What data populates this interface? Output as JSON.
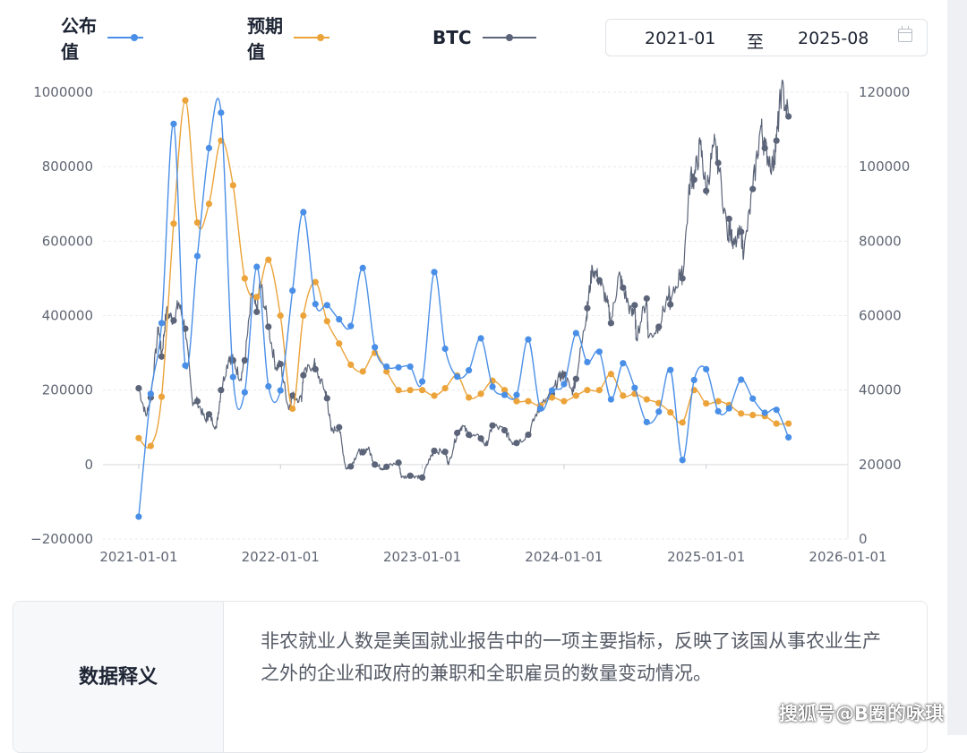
{
  "legend": {
    "items": [
      {
        "label": "公布值",
        "color": "#4a8fe7"
      },
      {
        "label": "预期值",
        "color": "#eba33a"
      },
      {
        "label": "BTC",
        "color": "#5b6478"
      }
    ]
  },
  "date_range": {
    "start": "2021-01",
    "separator": "至",
    "end": "2025-08"
  },
  "chart_data": {
    "type": "line",
    "x_axis": {
      "type": "date",
      "ticks": [
        "2021-01-01",
        "2022-01-01",
        "2023-01-01",
        "2024-01-01",
        "2025-01-01",
        "2026-01-01"
      ],
      "range": [
        "2020-10-01",
        "2026-01-01"
      ]
    },
    "y_axis_left": {
      "ticks": [
        "1000000",
        "800000",
        "600000",
        "400000",
        "200000",
        "0",
        "−200000"
      ],
      "range": [
        -200000,
        1000000
      ]
    },
    "y_axis_right": {
      "ticks": [
        "120000",
        "100000",
        "80000",
        "60000",
        "40000",
        "20000",
        "0"
      ],
      "range": [
        0,
        120000
      ]
    },
    "grid": "horizontal dashed",
    "legend_position": "top-left",
    "series": [
      {
        "name": "公布值",
        "axis": "left",
        "color": "#4a8fe7",
        "points": [
          [
            "2021-01-01",
            -140000
          ],
          [
            "2021-02-01",
            190000
          ],
          [
            "2021-03-01",
            380000
          ],
          [
            "2021-04-01",
            915000
          ],
          [
            "2021-05-01",
            266000
          ],
          [
            "2021-06-01",
            560000
          ],
          [
            "2021-07-01",
            850000
          ],
          [
            "2021-08-01",
            945000
          ],
          [
            "2021-09-01",
            235000
          ],
          [
            "2021-10-01",
            194000
          ],
          [
            "2021-11-01",
            531000
          ],
          [
            "2021-12-01",
            210000
          ],
          [
            "2022-01-01",
            199000
          ],
          [
            "2022-02-01",
            467000
          ],
          [
            "2022-03-01",
            678000
          ],
          [
            "2022-04-01",
            431000
          ],
          [
            "2022-05-01",
            428000
          ],
          [
            "2022-06-01",
            390000
          ],
          [
            "2022-07-01",
            372000
          ],
          [
            "2022-08-01",
            528000
          ],
          [
            "2022-09-01",
            315000
          ],
          [
            "2022-10-01",
            263000
          ],
          [
            "2022-11-01",
            261000
          ],
          [
            "2022-12-01",
            263000
          ],
          [
            "2023-01-01",
            223000
          ],
          [
            "2023-02-01",
            517000
          ],
          [
            "2023-03-01",
            311000
          ],
          [
            "2023-04-01",
            236000
          ],
          [
            "2023-05-01",
            253000
          ],
          [
            "2023-06-01",
            339000
          ],
          [
            "2023-07-01",
            209000
          ],
          [
            "2023-08-01",
            187000
          ],
          [
            "2023-09-01",
            187000
          ],
          [
            "2023-10-01",
            336000
          ],
          [
            "2023-11-01",
            150000
          ],
          [
            "2023-12-01",
            199000
          ],
          [
            "2024-01-01",
            216000
          ],
          [
            "2024-02-01",
            353000
          ],
          [
            "2024-03-01",
            275000
          ],
          [
            "2024-04-01",
            303000
          ],
          [
            "2024-05-01",
            175000
          ],
          [
            "2024-06-01",
            272000
          ],
          [
            "2024-07-01",
            206000
          ],
          [
            "2024-08-01",
            114000
          ],
          [
            "2024-09-01",
            142000
          ],
          [
            "2024-10-01",
            254000
          ],
          [
            "2024-11-01",
            12000
          ],
          [
            "2024-12-01",
            227000
          ],
          [
            "2025-01-01",
            256000
          ],
          [
            "2025-02-01",
            143000
          ],
          [
            "2025-03-01",
            151000
          ],
          [
            "2025-04-01",
            228000
          ],
          [
            "2025-05-01",
            177000
          ],
          [
            "2025-06-01",
            139000
          ],
          [
            "2025-07-01",
            147000
          ],
          [
            "2025-08-01",
            73000
          ]
        ]
      },
      {
        "name": "预期值",
        "axis": "left",
        "color": "#eba33a",
        "points": [
          [
            "2021-01-01",
            71000
          ],
          [
            "2021-02-01",
            50000
          ],
          [
            "2021-03-01",
            182000
          ],
          [
            "2021-04-01",
            647000
          ],
          [
            "2021-05-01",
            978000
          ],
          [
            "2021-06-01",
            650000
          ],
          [
            "2021-07-01",
            700000
          ],
          [
            "2021-08-01",
            870000
          ],
          [
            "2021-09-01",
            750000
          ],
          [
            "2021-10-01",
            500000
          ],
          [
            "2021-11-01",
            450000
          ],
          [
            "2021-12-01",
            550000
          ],
          [
            "2022-01-01",
            400000
          ],
          [
            "2022-02-01",
            150000
          ],
          [
            "2022-03-01",
            400000
          ],
          [
            "2022-04-01",
            490000
          ],
          [
            "2022-05-01",
            385000
          ],
          [
            "2022-06-01",
            325000
          ],
          [
            "2022-07-01",
            268000
          ],
          [
            "2022-08-01",
            250000
          ],
          [
            "2022-09-01",
            300000
          ],
          [
            "2022-10-01",
            250000
          ],
          [
            "2022-11-01",
            200000
          ],
          [
            "2022-12-01",
            200000
          ],
          [
            "2023-01-01",
            200000
          ],
          [
            "2023-02-01",
            185000
          ],
          [
            "2023-03-01",
            205000
          ],
          [
            "2023-04-01",
            239000
          ],
          [
            "2023-05-01",
            180000
          ],
          [
            "2023-06-01",
            190000
          ],
          [
            "2023-07-01",
            225000
          ],
          [
            "2023-08-01",
            200000
          ],
          [
            "2023-09-01",
            170000
          ],
          [
            "2023-10-01",
            170000
          ],
          [
            "2023-11-01",
            158000
          ],
          [
            "2023-12-01",
            180000
          ],
          [
            "2024-01-01",
            170000
          ],
          [
            "2024-02-01",
            185000
          ],
          [
            "2024-03-01",
            200000
          ],
          [
            "2024-04-01",
            200000
          ],
          [
            "2024-05-01",
            243000
          ],
          [
            "2024-06-01",
            185000
          ],
          [
            "2024-07-01",
            190000
          ],
          [
            "2024-08-01",
            175000
          ],
          [
            "2024-09-01",
            165000
          ],
          [
            "2024-10-01",
            140000
          ],
          [
            "2024-11-01",
            113000
          ],
          [
            "2024-12-01",
            200000
          ],
          [
            "2025-01-01",
            164000
          ],
          [
            "2025-02-01",
            170000
          ],
          [
            "2025-03-01",
            160000
          ],
          [
            "2025-04-01",
            137000
          ],
          [
            "2025-05-01",
            133000
          ],
          [
            "2025-06-01",
            130000
          ],
          [
            "2025-07-01",
            110000
          ],
          [
            "2025-08-01",
            110000
          ]
        ]
      },
      {
        "name": "BTC",
        "axis": "right",
        "color": "#5b6478",
        "points": [
          [
            "2021-01-01",
            40500
          ],
          [
            "2021-01-20",
            33000
          ],
          [
            "2021-02-01",
            38000
          ],
          [
            "2021-02-21",
            57000
          ],
          [
            "2021-03-01",
            49000
          ],
          [
            "2021-03-13",
            61000
          ],
          [
            "2021-04-01",
            58700
          ],
          [
            "2021-04-14",
            63500
          ],
          [
            "2021-05-01",
            56500
          ],
          [
            "2021-05-19",
            37000
          ],
          [
            "2021-06-01",
            37000
          ],
          [
            "2021-06-22",
            31800
          ],
          [
            "2021-07-01",
            33500
          ],
          [
            "2021-07-20",
            29800
          ],
          [
            "2021-08-01",
            40000
          ],
          [
            "2021-08-22",
            49000
          ],
          [
            "2021-09-01",
            48000
          ],
          [
            "2021-09-20",
            43000
          ],
          [
            "2021-10-01",
            48000
          ],
          [
            "2021-10-20",
            66000
          ],
          [
            "2021-11-01",
            61000
          ],
          [
            "2021-11-10",
            69000
          ],
          [
            "2021-12-01",
            57000
          ],
          [
            "2021-12-20",
            46000
          ],
          [
            "2022-01-01",
            47000
          ],
          [
            "2022-01-22",
            35000
          ],
          [
            "2022-02-01",
            38500
          ],
          [
            "2022-02-24",
            37500
          ],
          [
            "2022-03-01",
            44000
          ],
          [
            "2022-03-29",
            47500
          ],
          [
            "2022-04-01",
            45600
          ],
          [
            "2022-04-25",
            40000
          ],
          [
            "2022-05-01",
            37800
          ],
          [
            "2022-05-12",
            29000
          ],
          [
            "2022-06-01",
            30000
          ],
          [
            "2022-06-18",
            19000
          ],
          [
            "2022-07-01",
            19500
          ],
          [
            "2022-07-20",
            23500
          ],
          [
            "2022-08-01",
            23300
          ],
          [
            "2022-08-15",
            24400
          ],
          [
            "2022-09-01",
            20000
          ],
          [
            "2022-09-20",
            19000
          ],
          [
            "2022-10-01",
            19400
          ],
          [
            "2022-11-01",
            20500
          ],
          [
            "2022-11-09",
            16500
          ],
          [
            "2022-12-01",
            17000
          ],
          [
            "2022-12-20",
            16800
          ],
          [
            "2023-01-01",
            16500
          ],
          [
            "2023-01-20",
            21500
          ],
          [
            "2023-02-01",
            23700
          ],
          [
            "2023-03-01",
            23400
          ],
          [
            "2023-03-10",
            20000
          ],
          [
            "2023-04-01",
            28500
          ],
          [
            "2023-04-14",
            30500
          ],
          [
            "2023-05-01",
            28000
          ],
          [
            "2023-06-01",
            27000
          ],
          [
            "2023-06-15",
            25000
          ],
          [
            "2023-07-01",
            30500
          ],
          [
            "2023-08-01",
            29200
          ],
          [
            "2023-08-20",
            26000
          ],
          [
            "2023-09-01",
            25800
          ],
          [
            "2023-10-01",
            28000
          ],
          [
            "2023-10-25",
            34500
          ],
          [
            "2023-11-01",
            35500
          ],
          [
            "2023-12-01",
            39000
          ],
          [
            "2023-12-20",
            43500
          ],
          [
            "2024-01-01",
            44200
          ],
          [
            "2024-01-22",
            39500
          ],
          [
            "2024-02-01",
            43000
          ],
          [
            "2024-02-28",
            60000
          ],
          [
            "2024-03-01",
            62000
          ],
          [
            "2024-03-14",
            73000
          ],
          [
            "2024-04-01",
            69500
          ],
          [
            "2024-04-20",
            64000
          ],
          [
            "2024-05-01",
            58000
          ],
          [
            "2024-05-21",
            71000
          ],
          [
            "2024-06-01",
            67500
          ],
          [
            "2024-06-24",
            60000
          ],
          [
            "2024-07-01",
            62800
          ],
          [
            "2024-07-05",
            54000
          ],
          [
            "2024-08-01",
            64600
          ],
          [
            "2024-08-05",
            54000
          ],
          [
            "2024-09-01",
            57000
          ],
          [
            "2024-09-27",
            66000
          ],
          [
            "2024-10-01",
            63000
          ],
          [
            "2024-10-29",
            72500
          ],
          [
            "2024-11-01",
            70000
          ],
          [
            "2024-11-22",
            98000
          ],
          [
            "2024-12-01",
            96500
          ],
          [
            "2024-12-17",
            106000
          ],
          [
            "2025-01-01",
            93500
          ],
          [
            "2025-01-21",
            106000
          ],
          [
            "2025-02-01",
            101000
          ],
          [
            "2025-02-28",
            80000
          ],
          [
            "2025-03-01",
            86000
          ],
          [
            "2025-03-11",
            78000
          ],
          [
            "2025-04-01",
            82500
          ],
          [
            "2025-04-08",
            76500
          ],
          [
            "2025-05-01",
            94000
          ],
          [
            "2025-05-22",
            111000
          ],
          [
            "2025-06-01",
            105000
          ],
          [
            "2025-06-22",
            100000
          ],
          [
            "2025-07-01",
            107000
          ],
          [
            "2025-07-14",
            121000
          ],
          [
            "2025-08-01",
            113500
          ]
        ]
      }
    ]
  },
  "info": {
    "heading": "数据释义",
    "text": "非农就业人数是美国就业报告中的一项主要指标，反映了该国从事农业生产之外的企业和政府的兼职和全职雇员的数量变动情况。"
  },
  "watermark": "搜狐号@B圈的咏琪"
}
